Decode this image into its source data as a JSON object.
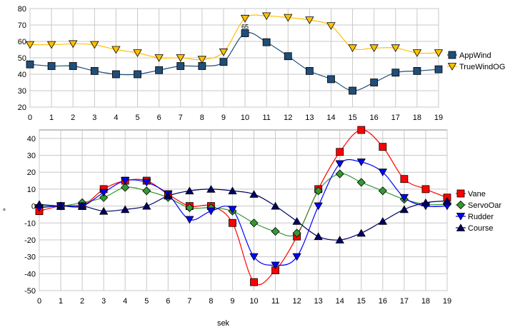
{
  "chart_data": [
    {
      "type": "line",
      "x": [
        0,
        1,
        2,
        3,
        4,
        5,
        6,
        7,
        8,
        9,
        10,
        11,
        12,
        13,
        14,
        15,
        16,
        17,
        18,
        19
      ],
      "ylim": [
        20,
        80
      ],
      "yticks": [
        20,
        30,
        40,
        50,
        60,
        70,
        80
      ],
      "grid": true,
      "legend": "right",
      "annotations": [
        {
          "x": 10,
          "y": 65,
          "text": "65"
        }
      ],
      "series": [
        {
          "name": "AppWind",
          "color": "#1F4E79",
          "marker": "square",
          "values": [
            46,
            45,
            45,
            42,
            40,
            40,
            42.5,
            45,
            45,
            47.5,
            65,
            59.5,
            51,
            42,
            37,
            30,
            35,
            41,
            42,
            43
          ]
        },
        {
          "name": "TrueWindOG",
          "color": "#FFC000",
          "marker": "triangle-down",
          "values": [
            58,
            58,
            58.5,
            58,
            55,
            53,
            50,
            50,
            49,
            53.5,
            74,
            75.5,
            74.5,
            73,
            69.5,
            56,
            56,
            56,
            53,
            53
          ]
        }
      ]
    },
    {
      "type": "line",
      "x": [
        0,
        1,
        2,
        3,
        4,
        5,
        6,
        7,
        8,
        9,
        10,
        11,
        12,
        13,
        14,
        15,
        16,
        17,
        18,
        19
      ],
      "ylim": [
        -50,
        45
      ],
      "yticks": [
        -50,
        -40,
        -30,
        -20,
        -10,
        0,
        10,
        20,
        30,
        40
      ],
      "xlabel": "sek",
      "ylabel": "°",
      "grid": true,
      "legend": "right",
      "series": [
        {
          "name": "Vane",
          "color": "#FF0000",
          "marker": "square",
          "values": [
            -3,
            0,
            0,
            10,
            15,
            15,
            7,
            0,
            0,
            -10,
            -45,
            -38,
            -18,
            10,
            32,
            45,
            35,
            16,
            10,
            5
          ]
        },
        {
          "name": "ServoOar",
          "color": "#339933",
          "marker": "diamond",
          "values": [
            0,
            0,
            2,
            5,
            11,
            9,
            5,
            -1,
            -1,
            -3,
            -10,
            -15,
            -16,
            9,
            19,
            14,
            9,
            4,
            1,
            1
          ]
        },
        {
          "name": "Rudder",
          "color": "#0000FF",
          "marker": "triangle-down",
          "values": [
            -1,
            0,
            0,
            8,
            15,
            14,
            7,
            -8,
            -3,
            -2,
            -30,
            -35,
            -30,
            0,
            25,
            26,
            20,
            5,
            0,
            0
          ]
        },
        {
          "name": "Course",
          "color": "#000066",
          "marker": "triangle-up",
          "values": [
            1,
            0,
            0,
            -3,
            -2,
            0,
            6,
            9,
            10,
            9,
            7,
            0,
            -9,
            -18,
            -20,
            -16,
            -9,
            -2,
            2,
            3
          ]
        }
      ]
    }
  ]
}
